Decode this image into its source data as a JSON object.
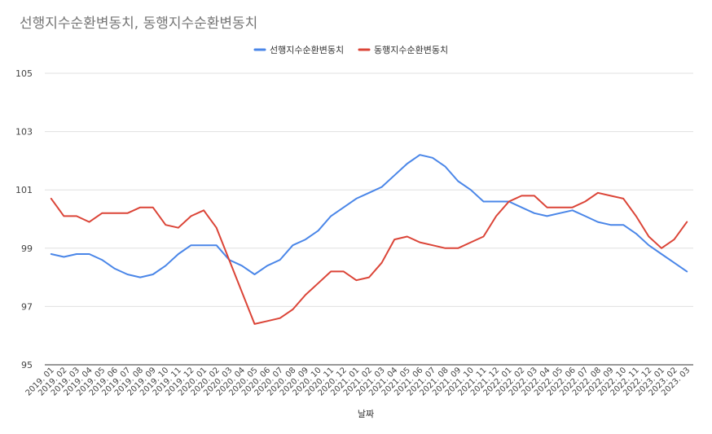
{
  "chart_data": {
    "type": "line",
    "title": "선행지수순환변동치, 동행지수순환변동치",
    "xlabel": "날짜",
    "ylabel": "",
    "ylim": [
      95,
      105
    ],
    "yticks": [
      95,
      97,
      99,
      101,
      103,
      105
    ],
    "grid": true,
    "legend_position": "top",
    "x": [
      "2019. 01",
      "2019. 02",
      "2019. 03",
      "2019. 04",
      "2019. 05",
      "2019. 06",
      "2019. 07",
      "2019. 08",
      "2019. 09",
      "2019. 10",
      "2019. 11",
      "2019. 12",
      "2020. 01",
      "2020. 02",
      "2020. 03",
      "2020. 04",
      "2020. 05",
      "2020. 06",
      "2020. 07",
      "2020. 08",
      "2020. 09",
      "2020. 10",
      "2020. 11",
      "2020. 12",
      "2021. 01",
      "2021. 02",
      "2021. 03",
      "2021. 04",
      "2021. 05",
      "2021. 06",
      "2021. 07",
      "2021. 08",
      "2021. 09",
      "2021. 10",
      "2021. 11",
      "2021. 12",
      "2022. 01",
      "2022. 02",
      "2022. 03",
      "2022. 04",
      "2022. 05",
      "2022. 06",
      "2022. 07",
      "2022. 08",
      "2022. 09",
      "2022. 10",
      "2022. 11",
      "2022. 12",
      "2023. 01",
      "2023. 02",
      "2023. 03"
    ],
    "series": [
      {
        "name": "선행지수순환변동치",
        "color": "#4a86e8",
        "values": [
          98.8,
          98.7,
          98.8,
          98.8,
          98.6,
          98.3,
          98.1,
          98.0,
          98.1,
          98.4,
          98.8,
          99.1,
          99.1,
          99.1,
          98.6,
          98.4,
          98.1,
          98.4,
          98.6,
          99.1,
          99.3,
          99.6,
          100.1,
          100.4,
          100.7,
          100.9,
          101.1,
          101.5,
          101.9,
          102.2,
          102.1,
          101.8,
          101.3,
          101.0,
          100.6,
          100.6,
          100.6,
          100.4,
          100.2,
          100.1,
          100.2,
          100.3,
          100.1,
          99.9,
          99.8,
          99.8,
          99.5,
          99.1,
          98.8,
          98.5,
          98.2
        ]
      },
      {
        "name": "동행지수순환변동치",
        "color": "#db4437",
        "values": [
          100.7,
          100.1,
          100.1,
          99.9,
          100.2,
          100.2,
          100.2,
          100.4,
          100.4,
          99.8,
          99.7,
          100.1,
          100.3,
          99.7,
          98.6,
          97.5,
          96.4,
          96.5,
          96.6,
          96.9,
          97.4,
          97.8,
          98.2,
          98.2,
          97.9,
          98.0,
          98.5,
          99.3,
          99.4,
          99.2,
          99.1,
          99.0,
          99.0,
          99.2,
          99.4,
          100.1,
          100.6,
          100.8,
          100.8,
          100.4,
          100.4,
          100.4,
          100.6,
          100.9,
          100.8,
          100.7,
          100.1,
          99.4,
          99.0,
          99.3,
          99.9
        ]
      }
    ]
  }
}
